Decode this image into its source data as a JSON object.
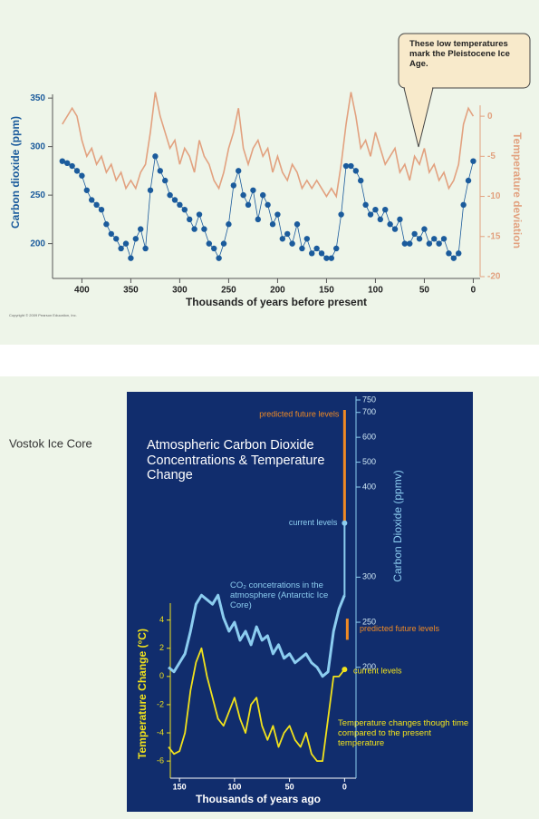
{
  "slide": {
    "heading": "Vostok Ice Core"
  },
  "chart_data": [
    {
      "type": "combo",
      "xlabel": "Thousands of years before present",
      "ylabel": "Carbon dioxide (ppm)",
      "y2label": "Temperature deviation",
      "annotation": "These low temperatures mark the Pleistocene Ice Age.",
      "copyright": "Copyright © 2009 Pearson Education, Inc.",
      "xlim": [
        430,
        -7
      ],
      "xticks": [
        400,
        350,
        300,
        250,
        200,
        150,
        100,
        50,
        0
      ],
      "ylim": [
        166,
        352
      ],
      "yticks": [
        200,
        250,
        300,
        350
      ],
      "y2lim": [
        -20,
        2.5
      ],
      "y2ticks": [
        0,
        -5,
        -10,
        -15,
        -20
      ],
      "x": [
        420,
        415,
        410,
        405,
        400,
        395,
        390,
        385,
        380,
        375,
        370,
        365,
        360,
        355,
        350,
        345,
        340,
        335,
        330,
        325,
        320,
        315,
        310,
        305,
        300,
        295,
        290,
        285,
        280,
        275,
        270,
        265,
        260,
        255,
        250,
        245,
        240,
        235,
        230,
        225,
        220,
        215,
        210,
        205,
        200,
        195,
        190,
        185,
        180,
        175,
        170,
        165,
        160,
        155,
        150,
        145,
        140,
        135,
        130,
        125,
        120,
        115,
        110,
        105,
        100,
        95,
        90,
        85,
        80,
        75,
        70,
        65,
        60,
        55,
        50,
        45,
        40,
        35,
        30,
        25,
        20,
        15,
        10,
        5,
        0
      ],
      "series": [
        {
          "style": "dots",
          "color": "#1b5b9c",
          "values": [
            285,
            283,
            280,
            275,
            270,
            255,
            245,
            240,
            235,
            220,
            210,
            205,
            195,
            200,
            185,
            205,
            215,
            195,
            255,
            290,
            275,
            265,
            250,
            245,
            240,
            235,
            225,
            215,
            230,
            215,
            200,
            195,
            185,
            200,
            220,
            260,
            275,
            250,
            240,
            255,
            225,
            250,
            240,
            220,
            230,
            205,
            210,
            200,
            220,
            195,
            205,
            190,
            195,
            190,
            185,
            185,
            195,
            230,
            280,
            280,
            275,
            265,
            240,
            230,
            235,
            225,
            235,
            220,
            215,
            225,
            200,
            200,
            210,
            205,
            215,
            200,
            205,
            200,
            205,
            190,
            185,
            190,
            240,
            265,
            285
          ]
        },
        {
          "style": "line",
          "axis": "y2",
          "color": "#e2a17f",
          "values": [
            -1,
            0,
            1,
            0,
            -3,
            -5,
            -4,
            -6,
            -5,
            -7,
            -6,
            -8,
            -7,
            -9,
            -8,
            -9,
            -7,
            -6,
            -2,
            3,
            0,
            -2,
            -4,
            -3,
            -6,
            -4,
            -5,
            -7,
            -3,
            -5,
            -6,
            -8,
            -9,
            -7,
            -4,
            -2,
            1,
            -4,
            -6,
            -4,
            -3,
            -5,
            -4,
            -7,
            -5,
            -7,
            -8,
            -6,
            -7,
            -9,
            -8,
            -9,
            -8,
            -9,
            -10,
            -9,
            -10,
            -6,
            -1,
            3,
            0,
            -4,
            -3,
            -5,
            -2,
            -4,
            -6,
            -5,
            -4,
            -7,
            -6,
            -8,
            -5,
            -6,
            -4,
            -7,
            -6,
            -8,
            -7,
            -9,
            -8,
            -6,
            -1,
            1,
            0
          ]
        }
      ]
    },
    {
      "type": "line",
      "title": "Atmospheric Carbon Dioxide Concentrations & Temperature Change",
      "xlabel": "Thousands of years ago",
      "ylabel": "Temperature Change (°C)",
      "y2label": "Carbon Dioxide (ppmv)",
      "xlim": [
        160,
        -3
      ],
      "xticks": [
        150,
        100,
        50,
        0
      ],
      "ylim": [
        -6.7,
        5.2
      ],
      "yticks": [
        4,
        2,
        0,
        -2,
        -4,
        -6
      ],
      "y2lim": [
        85,
        750
      ],
      "y2_scale_break": 400,
      "y2ticks": [
        750,
        700,
        600,
        500,
        400,
        300,
        250,
        200
      ],
      "x": [
        160,
        155,
        150,
        145,
        140,
        135,
        130,
        125,
        120,
        115,
        110,
        105,
        100,
        95,
        90,
        85,
        80,
        75,
        70,
        65,
        60,
        55,
        50,
        45,
        40,
        35,
        30,
        25,
        20,
        15,
        10,
        5,
        0
      ],
      "series": [
        {
          "label": "Temperature changes though time compared to the present temperature",
          "color": "#f1e21c",
          "values": [
            -5,
            -5.5,
            -5.3,
            -4,
            -1,
            1,
            2,
            0,
            -1.5,
            -3,
            -3.5,
            -2.5,
            -1.5,
            -3,
            -4,
            -2,
            -1.5,
            -3.5,
            -4.5,
            -3.5,
            -5,
            -4,
            -3.5,
            -4.5,
            -5,
            -4,
            -5.5,
            -6,
            -6,
            -3,
            0,
            0,
            0.5
          ]
        },
        {
          "label": "CO₂ concetrations in the atmosphere (Antarctic Ice Core)",
          "axis": "y2",
          "color": "#8ccdf0",
          "values": [
            200,
            195,
            205,
            215,
            240,
            270,
            280,
            275,
            270,
            280,
            255,
            240,
            250,
            230,
            240,
            225,
            245,
            230,
            235,
            215,
            225,
            210,
            215,
            205,
            210,
            215,
            205,
            200,
            190,
            195,
            240,
            265,
            280
          ]
        }
      ],
      "co2_current": {
        "label": "current levels",
        "value": 360,
        "color": "#8ccdf0"
      },
      "co2_future": {
        "label": "predicted future levels",
        "values": [
          360,
          710
        ],
        "color": "#f08a24"
      },
      "temperature_current": {
        "label": "current levels",
        "value": 0.5,
        "color": "#f1e21c"
      },
      "temperature_future": {
        "label": "predicted future levels",
        "values": [
          2.6,
          4.1
        ],
        "color": "#f08a24"
      }
    }
  ]
}
